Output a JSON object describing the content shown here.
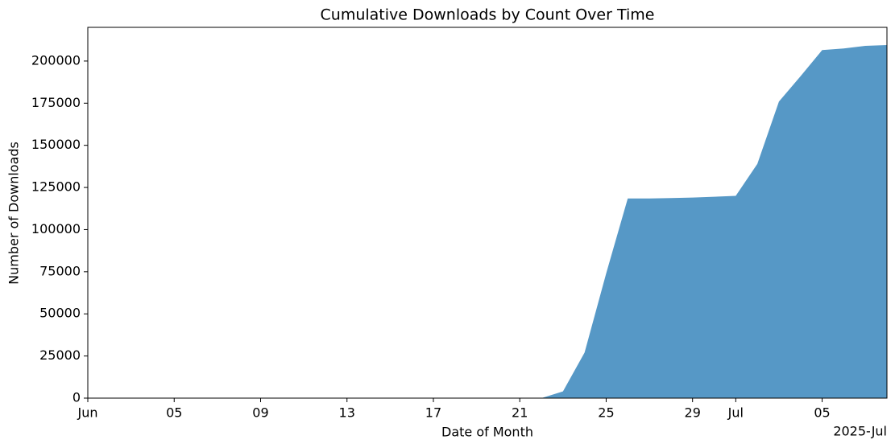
{
  "chart_data": {
    "type": "area",
    "title": "Cumulative Downloads by Count Over Time",
    "x_label": "Date of Month",
    "y_label": "Number of Downloads",
    "x_offset_label": "2025-Jul",
    "color": "#5698c6",
    "x": [
      "2025-06-22",
      "2025-06-23",
      "2025-06-24",
      "2025-06-25",
      "2025-06-26",
      "2025-06-27",
      "2025-06-28",
      "2025-06-29",
      "2025-06-30",
      "2025-07-01",
      "2025-07-02",
      "2025-07-03",
      "2025-07-04",
      "2025-07-05",
      "2025-07-06",
      "2025-07-07",
      "2025-07-08"
    ],
    "values": [
      0,
      4000,
      27000,
      74000,
      118500,
      118500,
      118700,
      119000,
      119500,
      120000,
      139000,
      176000,
      191000,
      206500,
      207500,
      209000,
      209500
    ],
    "xlim": [
      "2025-06-01",
      "2025-07-08"
    ],
    "xticks": [
      {
        "value": "2025-06-01",
        "label": "Jun"
      },
      {
        "value": "2025-06-05",
        "label": "05"
      },
      {
        "value": "2025-06-09",
        "label": "09"
      },
      {
        "value": "2025-06-13",
        "label": "13"
      },
      {
        "value": "2025-06-17",
        "label": "17"
      },
      {
        "value": "2025-06-21",
        "label": "21"
      },
      {
        "value": "2025-06-25",
        "label": "25"
      },
      {
        "value": "2025-06-29",
        "label": "29"
      },
      {
        "value": "2025-07-01",
        "label": "Jul"
      },
      {
        "value": "2025-07-05",
        "label": "05"
      }
    ],
    "ylim": [
      0,
      220000
    ],
    "yticks": [
      0,
      25000,
      50000,
      75000,
      100000,
      125000,
      150000,
      175000,
      200000
    ]
  }
}
